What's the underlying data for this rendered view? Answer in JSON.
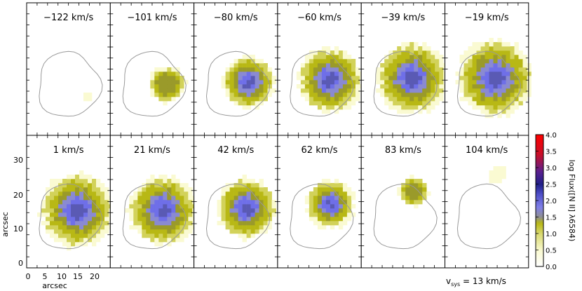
{
  "figure": {
    "panels": [
      {
        "label": "−122 km/s",
        "level": 0.03
      },
      {
        "label": "−101 km/s",
        "level": 0.4
      },
      {
        "label": "−80 km/s",
        "level": 0.65
      },
      {
        "label": "−60 km/s",
        "level": 0.82
      },
      {
        "label": "−39 km/s",
        "level": 0.92
      },
      {
        "label": "−19 km/s",
        "level": 1.0
      },
      {
        "label": "1 km/s",
        "level": 0.95
      },
      {
        "label": "21 km/s",
        "level": 0.88
      },
      {
        "label": "42 km/s",
        "level": 0.75
      },
      {
        "label": "62 km/s",
        "level": 0.58
      },
      {
        "label": "83 km/s",
        "level": 0.3
      },
      {
        "label": "104 km/s",
        "level": 0.12
      }
    ],
    "y_axis": {
      "label": "arcsec",
      "ticks": [
        "30",
        "20",
        "10",
        "0"
      ]
    },
    "x_axis": {
      "label": "arcsec",
      "ticks": [
        "0",
        "5",
        "10",
        "15",
        "20"
      ]
    },
    "colorbar": {
      "label": "log Flux([N II] λ6584)",
      "ticks": [
        "4.0",
        "3.5",
        "3.0",
        "2.5",
        "2.0",
        "1.5",
        "1.0",
        "0.5",
        "0.0"
      ]
    },
    "vsys": {
      "v": "v",
      "sub": "sys",
      "rest": " = 13 km/s"
    },
    "colors": {
      "low": "#fafad2",
      "olive": "#b8b815",
      "olive_dark": "#9a9a2a",
      "blue": "#6f6fe8",
      "blue_dark": "#5a5ab4",
      "contour": "#999999"
    }
  }
}
